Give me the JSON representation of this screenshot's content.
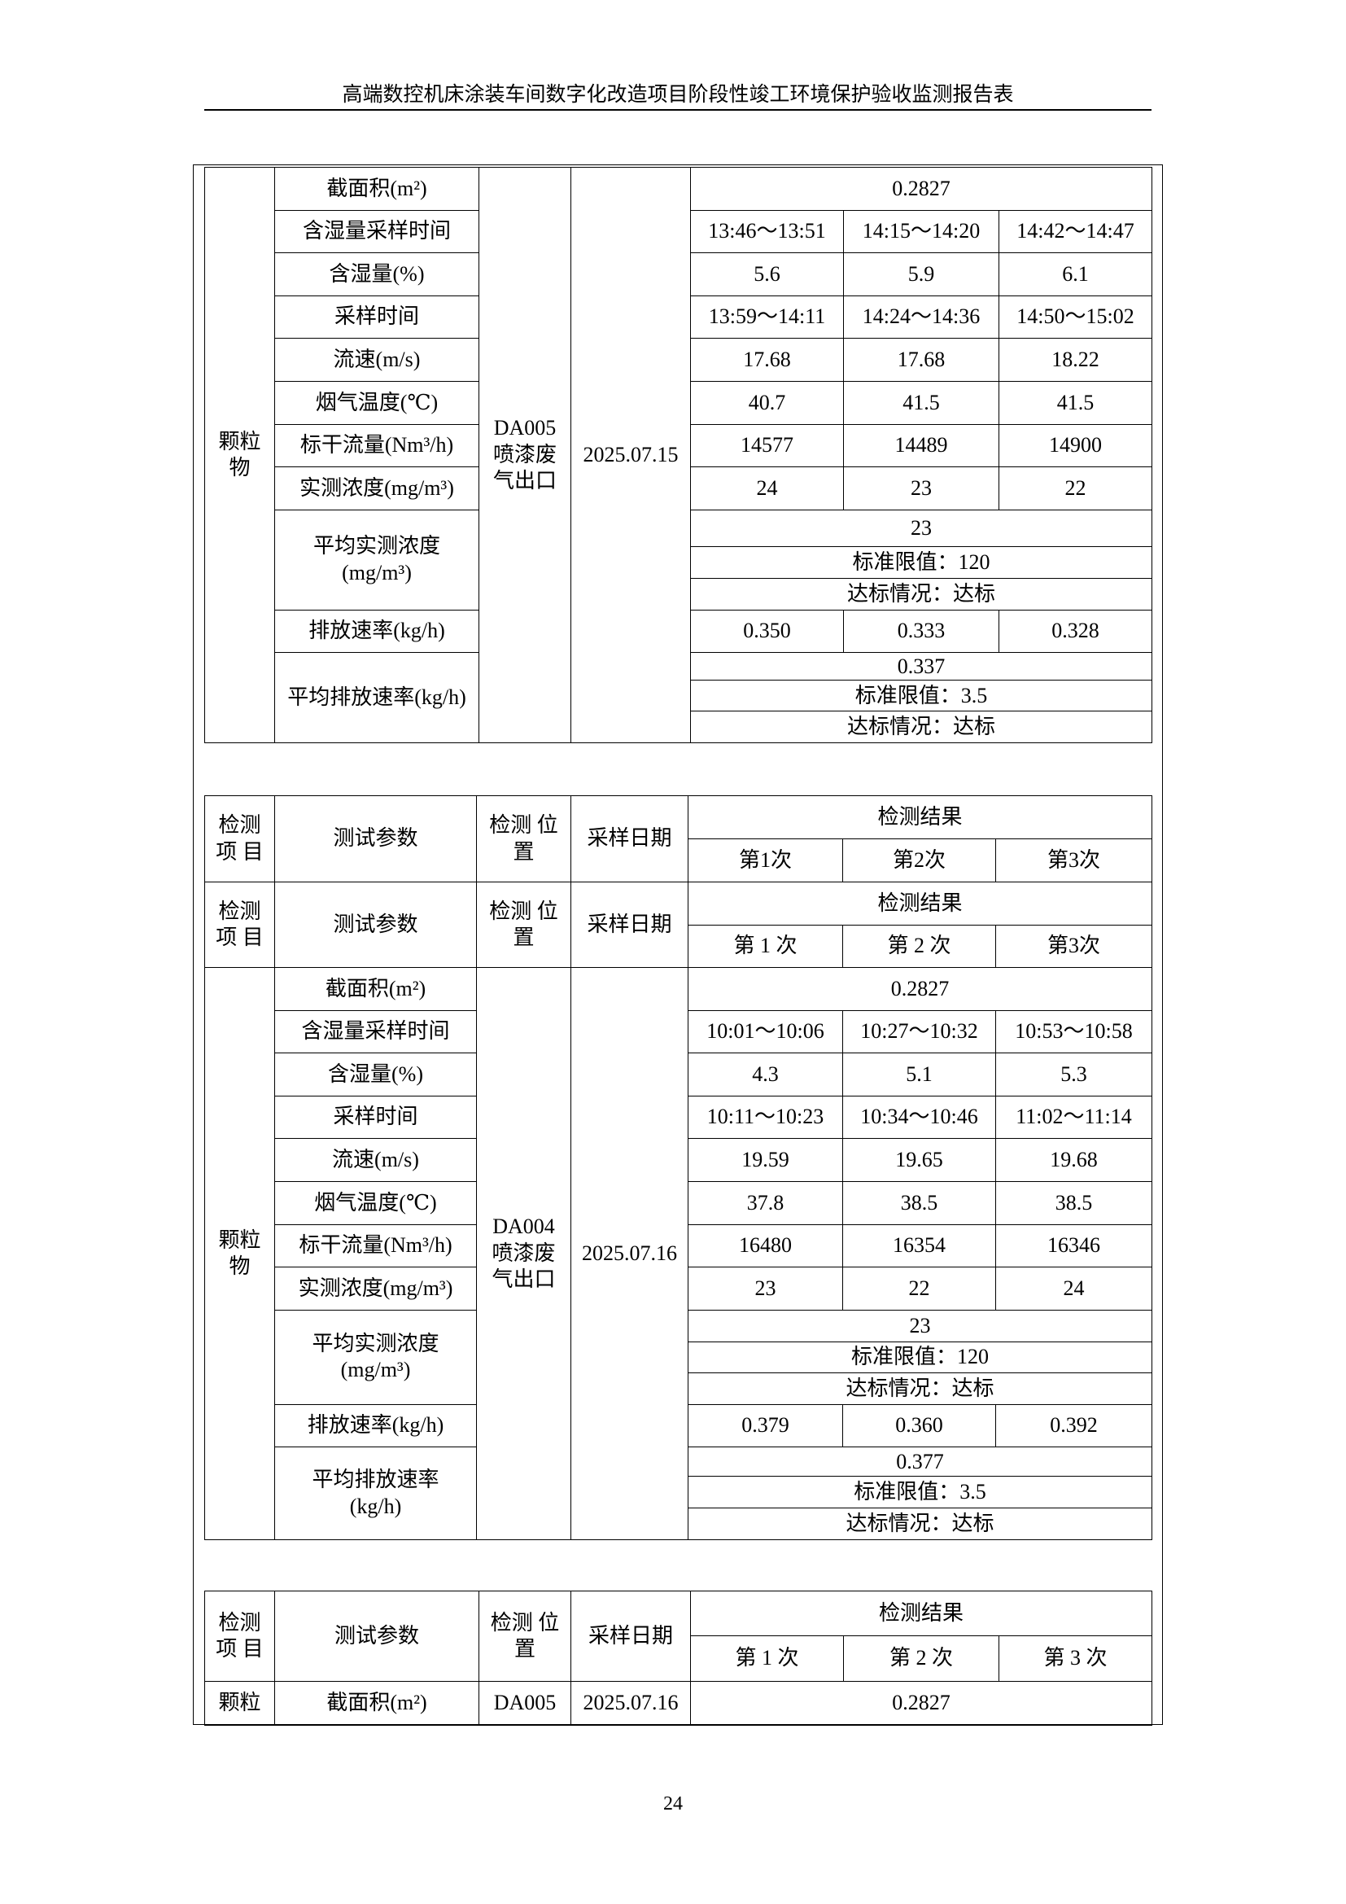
{
  "page_header": "高端数控机床涂装车间数字化改造项目阶段性竣工环境保护验收监测报告表",
  "page_number": "24",
  "table1": {
    "item": "颗粒\n物",
    "location": "DA005\n喷漆废\n气出口",
    "date": "2025.07.15",
    "rows": [
      {
        "param": "截面积(m²)",
        "values": [
          "0.2827"
        ]
      },
      {
        "param": "含湿量采样时间",
        "values": [
          "13:46～13:51",
          "14:15～14:20",
          "14:42～14:47"
        ]
      },
      {
        "param": "含湿量(%)",
        "values": [
          "5.6",
          "5.9",
          "6.1"
        ]
      },
      {
        "param": "采样时间",
        "values": [
          "13:59～14:11",
          "14:24～14:36",
          "14:50～15:02"
        ]
      },
      {
        "param": "流速(m/s)",
        "values": [
          "17.68",
          "17.68",
          "18.22"
        ]
      },
      {
        "param": "烟气温度(℃)",
        "values": [
          "40.7",
          "41.5",
          "41.5"
        ]
      },
      {
        "param": "标干流量(Nm³/h)",
        "values": [
          "14577",
          "14489",
          "14900"
        ]
      },
      {
        "param": "实测浓度(mg/m³)",
        "values": [
          "24",
          "23",
          "22"
        ]
      },
      {
        "param": "平均实测浓度\n(mg/m³)",
        "lines": [
          "23",
          "标准限值：120",
          "达标情况：达标"
        ]
      },
      {
        "param": "排放速率(kg/h)",
        "values": [
          "0.350",
          "0.333",
          "0.328"
        ]
      },
      {
        "param": "平均排放速率(kg/h)",
        "lines": [
          "0.337",
          "标准限值：3.5",
          "达标情况：达标"
        ]
      }
    ]
  },
  "table2": {
    "headers": [
      {
        "item": "检测\n项 目",
        "param": "测试参数",
        "location": "检测 位\n置",
        "date": "采样日期",
        "result": "检测结果",
        "runs": [
          "第1次",
          "第2次",
          "第3次"
        ]
      },
      {
        "item": "检测\n项 目",
        "param": "测试参数",
        "location": "检测 位\n置",
        "date": "采样日期",
        "result": "检测结果",
        "runs": [
          "第 1 次",
          "第 2 次",
          "第3次"
        ]
      }
    ],
    "block": {
      "item": "颗粒\n物",
      "location": "DA004\n喷漆废\n气出口",
      "date": "2025.07.16",
      "rows": [
        {
          "param": "截面积(m²)",
          "values": [
            "0.2827"
          ]
        },
        {
          "param": "含湿量采样时间",
          "values": [
            "10:01～10:06",
            "10:27～10:32",
            "10:53～10:58"
          ]
        },
        {
          "param": "含湿量(%)",
          "values": [
            "4.3",
            "5.1",
            "5.3"
          ]
        },
        {
          "param": "采样时间",
          "values": [
            "10:11～10:23",
            "10:34～10:46",
            "11:02～11:14"
          ]
        },
        {
          "param": "流速(m/s)",
          "values": [
            "19.59",
            "19.65",
            "19.68"
          ]
        },
        {
          "param": "烟气温度(℃)",
          "values": [
            "37.8",
            "38.5",
            "38.5"
          ]
        },
        {
          "param": "标干流量(Nm³/h)",
          "values": [
            "16480",
            "16354",
            "16346"
          ]
        },
        {
          "param": "实测浓度(mg/m³)",
          "values": [
            "23",
            "22",
            "24"
          ]
        },
        {
          "param": "平均实测浓度\n(mg/m³)",
          "lines": [
            "23",
            "标准限值：120",
            "达标情况：达标"
          ]
        },
        {
          "param": "排放速率(kg/h)",
          "values": [
            "0.379",
            "0.360",
            "0.392"
          ]
        },
        {
          "param": "平均排放速率\n(kg/h)",
          "lines": [
            "0.377",
            "标准限值：3.5",
            "达标情况：达标"
          ]
        }
      ]
    }
  },
  "table3": {
    "header": {
      "item": "检测\n项 目",
      "param": "测试参数",
      "location": "检测 位\n置",
      "date": "采样日期",
      "result": "检测结果",
      "runs": [
        "第 1 次",
        "第 2 次",
        "第 3 次"
      ]
    },
    "row": {
      "item": "颗粒",
      "param": "截面积(m²)",
      "location": "DA005",
      "date": "2025.07.16",
      "value": "0.2827"
    }
  }
}
